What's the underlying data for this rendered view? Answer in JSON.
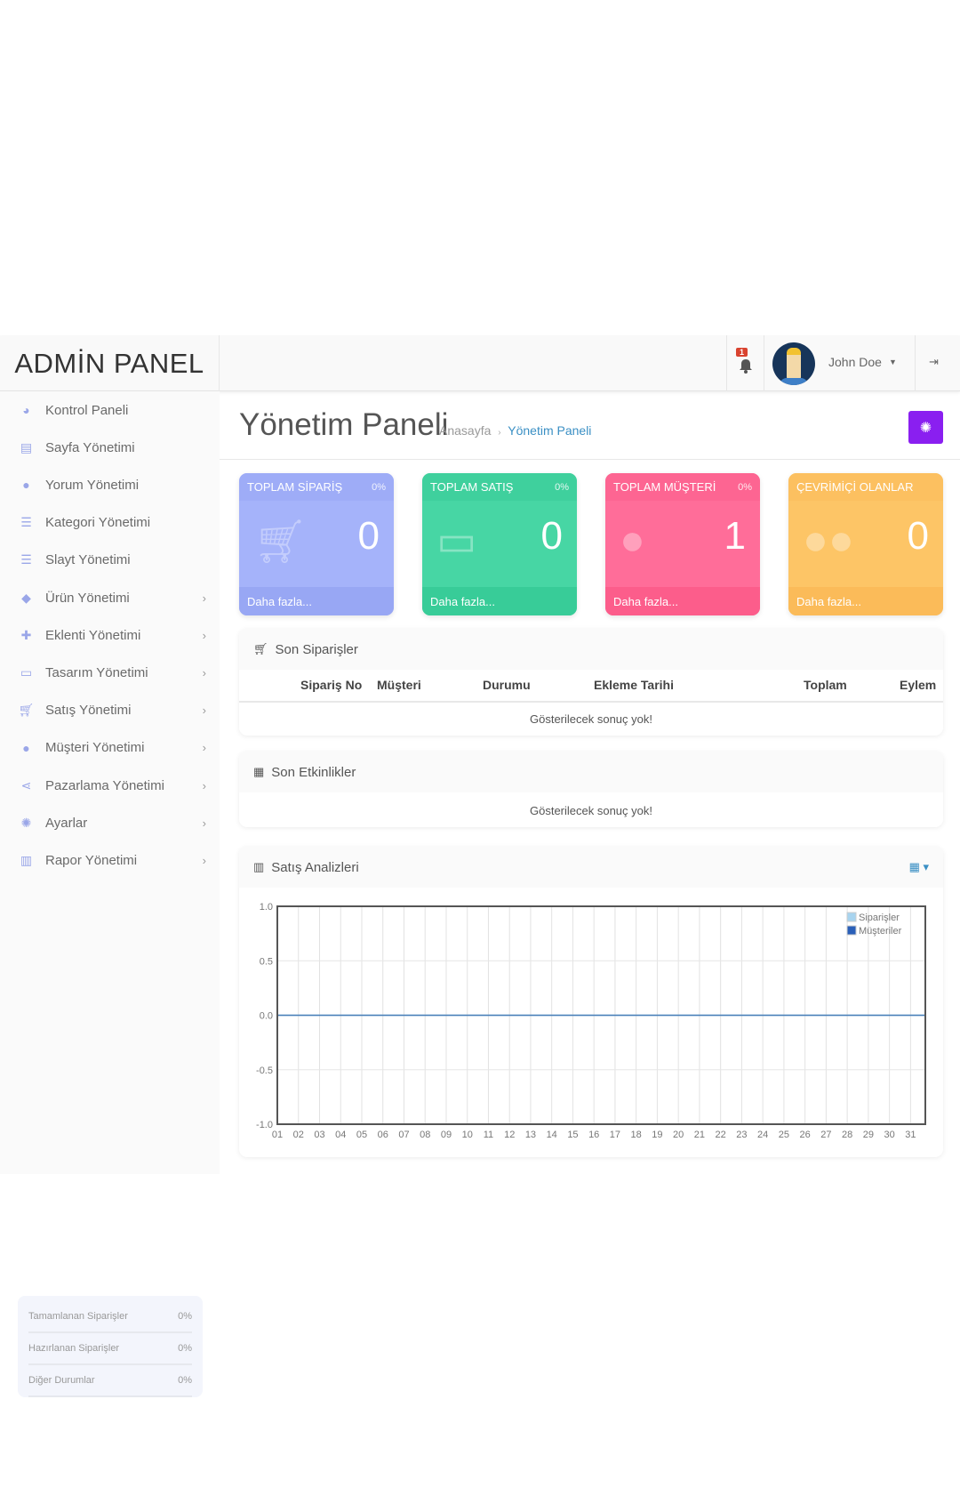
{
  "header": {
    "logo": "ADMİN PANEL",
    "notification_count": "1",
    "user_name": "John Doe"
  },
  "sidebar": {
    "items": [
      {
        "label": "Kontrol Paneli",
        "icon": "dashboard-icon",
        "sub": false
      },
      {
        "label": "Sayfa Yönetimi",
        "icon": "file-icon",
        "sub": false
      },
      {
        "label": "Yorum Yönetimi",
        "icon": "comments-icon",
        "sub": false
      },
      {
        "label": "Kategori Yönetimi",
        "icon": "list-icon",
        "sub": false
      },
      {
        "label": "Slayt Yönetimi",
        "icon": "list-icon",
        "sub": false
      },
      {
        "label": "Ürün Yönetimi",
        "icon": "tags-icon",
        "sub": true
      },
      {
        "label": "Eklenti Yönetimi",
        "icon": "puzzle-icon",
        "sub": true
      },
      {
        "label": "Tasarım Yönetimi",
        "icon": "desktop-icon",
        "sub": true
      },
      {
        "label": "Satış Yönetimi",
        "icon": "cart-icon",
        "sub": true
      },
      {
        "label": "Müşteri Yönetimi",
        "icon": "user-icon",
        "sub": true
      },
      {
        "label": "Pazarlama Yönetimi",
        "icon": "share-icon",
        "sub": true
      },
      {
        "label": "Ayarlar",
        "icon": "gear-icon",
        "sub": true
      },
      {
        "label": "Rapor Yönetimi",
        "icon": "bar-chart-icon",
        "sub": true
      }
    ],
    "stats": [
      {
        "label": "Tamamlanan Siparişler",
        "value": "0%"
      },
      {
        "label": "Hazırlanan Siparişler",
        "value": "0%"
      },
      {
        "label": "Diğer Durumlar",
        "value": "0%"
      }
    ]
  },
  "page": {
    "title": "Yönetim Paneli",
    "breadcrumb": [
      "Anasayfa",
      "Yönetim Paneli"
    ]
  },
  "cards": [
    {
      "title": "TOPLAM SİPARİŞ",
      "pct": "0%",
      "value": "0",
      "footer": "Daha fazla...",
      "color": "#a5b3fa",
      "head": "#9eacf7",
      "foot": "#98a7f4"
    },
    {
      "title": "TOPLAM SATIŞ",
      "pct": "0%",
      "value": "0",
      "footer": "Daha fazla...",
      "color": "#47d6a4",
      "head": "#3fd09d",
      "foot": "#38cc98"
    },
    {
      "title": "TOPLAM MÜŞTERİ",
      "pct": "0%",
      "value": "1",
      "footer": "Daha fazla...",
      "color": "#ff6d99",
      "head": "#fd6592",
      "foot": "#fc5d8b"
    },
    {
      "title": "ÇEVRİMİÇİ OLANLAR",
      "pct": "",
      "value": "0",
      "footer": "Daha fazla...",
      "color": "#fdc566",
      "head": "#fcc060",
      "foot": "#fbbb59"
    }
  ],
  "orders": {
    "title": "Son Siparişler",
    "columns": [
      "Sipariş No",
      "Müşteri",
      "Durumu",
      "Ekleme Tarihi",
      "Toplam",
      "Eylem"
    ],
    "empty": "Gösterilecek sonuç yok!"
  },
  "events": {
    "title": "Son Etkinlikler",
    "empty": "Gösterilecek sonuç yok!"
  },
  "analytics": {
    "title": "Satış Analizleri"
  },
  "chart_data": {
    "type": "line",
    "x": [
      "01",
      "02",
      "03",
      "04",
      "05",
      "06",
      "07",
      "08",
      "09",
      "10",
      "11",
      "12",
      "13",
      "14",
      "15",
      "16",
      "17",
      "18",
      "19",
      "20",
      "21",
      "22",
      "23",
      "24",
      "25",
      "26",
      "27",
      "28",
      "29",
      "30",
      "31"
    ],
    "yticks": [
      "1.0",
      "0.5",
      "0.0",
      "-0.5",
      "-1.0"
    ],
    "ylim": [
      -1,
      1
    ],
    "grid": true,
    "legend": "top-right",
    "series": [
      {
        "name": "Siparişler",
        "color": "#a8d4ef",
        "values": [
          0,
          0,
          0,
          0,
          0,
          0,
          0,
          0,
          0,
          0,
          0,
          0,
          0,
          0,
          0,
          0,
          0,
          0,
          0,
          0,
          0,
          0,
          0,
          0,
          0,
          0,
          0,
          0,
          0,
          0,
          0
        ]
      },
      {
        "name": "Müşteriler",
        "color": "#2a5fb8",
        "values": [
          0,
          0,
          0,
          0,
          0,
          0,
          0,
          0,
          0,
          0,
          0,
          0,
          0,
          0,
          0,
          0,
          0,
          0,
          0,
          0,
          0,
          0,
          0,
          0,
          0,
          0,
          0,
          0,
          0,
          0,
          0
        ]
      }
    ]
  }
}
